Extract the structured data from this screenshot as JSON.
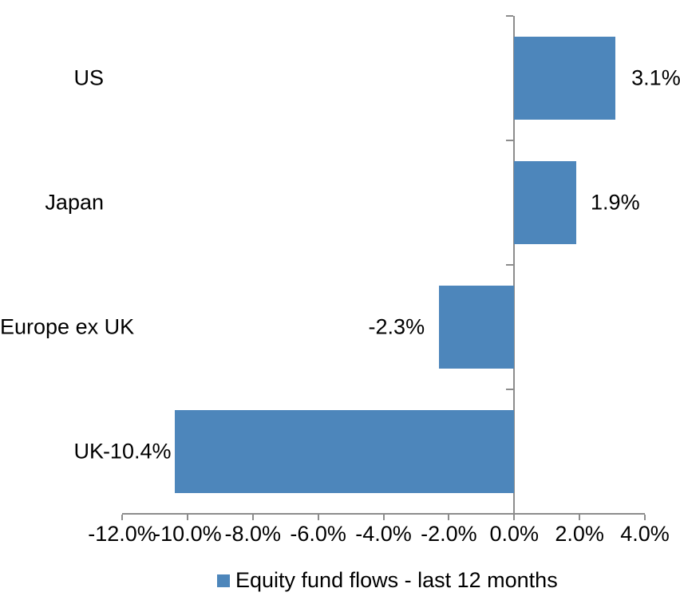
{
  "chart_data": {
    "type": "bar",
    "orientation": "horizontal",
    "title": "",
    "categories": [
      "US",
      "Japan",
      "Europe ex UK",
      "UK"
    ],
    "series": [
      {
        "name": "Equity fund flows - last 12 months",
        "values": [
          3.1,
          1.9,
          -2.3,
          -10.4
        ],
        "data_labels": [
          "3.1%",
          "1.9%",
          "-2.3%",
          "-10.4%"
        ]
      }
    ],
    "x_axis": {
      "min": -12,
      "max": 4,
      "tick_step": 2,
      "tick_labels": [
        "-12.0%",
        "-10.0%",
        "-8.0%",
        "-6.0%",
        "-4.0%",
        "-2.0%",
        "0.0%",
        "2.0%",
        "4.0%"
      ],
      "format": "percent"
    },
    "y_axis": {
      "label_alignment": "right",
      "baseline_at_zero": true
    },
    "legend": {
      "position": "bottom",
      "label": "Equity fund flows - last 12 months"
    },
    "grid": false,
    "colors": {
      "bar": "#4D86BB",
      "axis": "#8C8C8C",
      "text": "#000000",
      "background": "#FFFFFF"
    }
  }
}
